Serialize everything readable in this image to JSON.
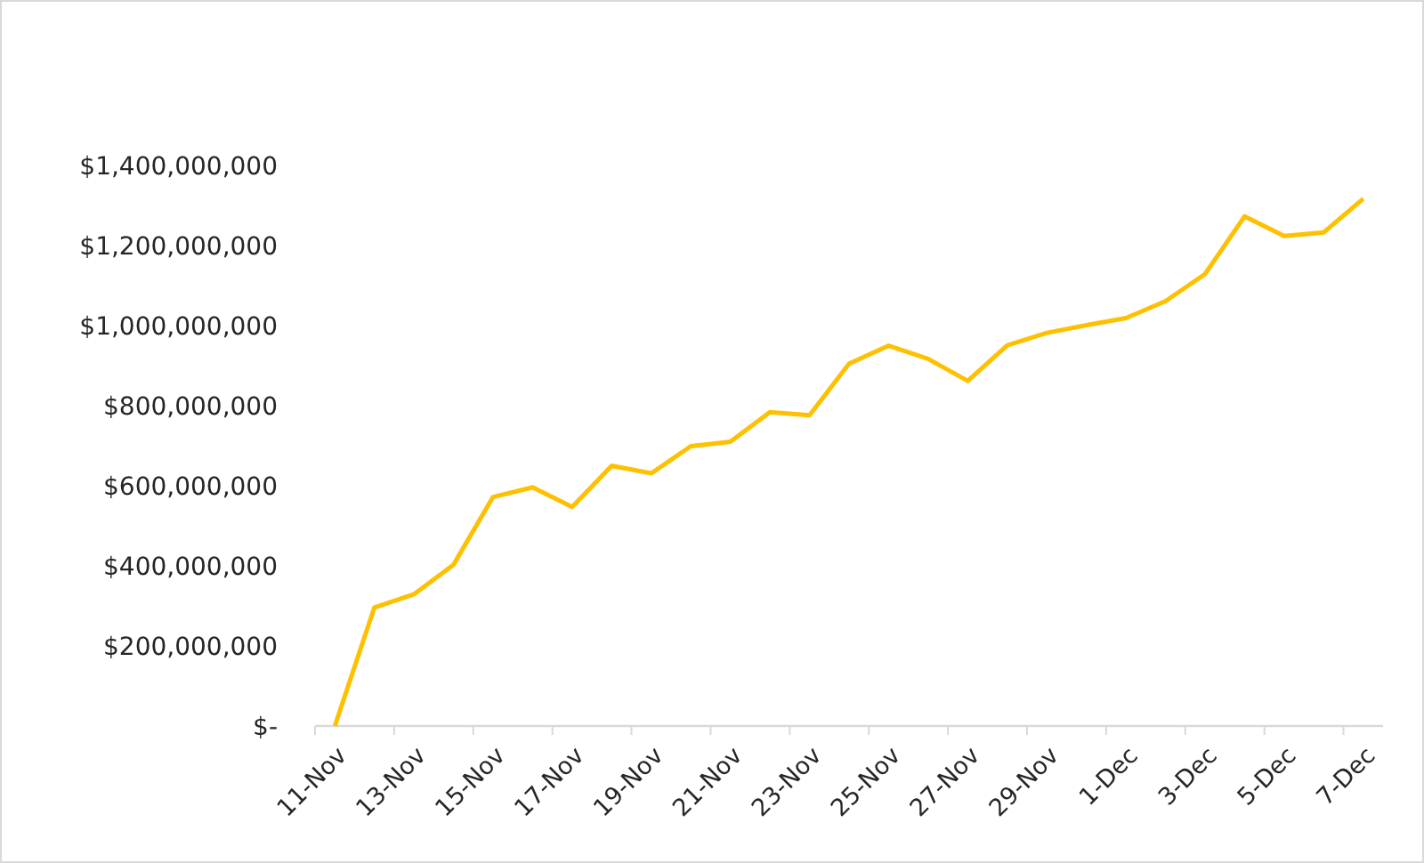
{
  "chart_data": {
    "type": "line",
    "categories": [
      "11-Nov",
      null,
      "13-Nov",
      null,
      "15-Nov",
      null,
      "17-Nov",
      null,
      "19-Nov",
      null,
      "21-Nov",
      null,
      "23-Nov",
      null,
      "25-Nov",
      null,
      "27-Nov",
      null,
      "29-Nov",
      null,
      "1-Dec",
      null,
      "3-Dec",
      null,
      "5-Dec",
      null,
      "7-Dec"
    ],
    "series": [
      {
        "color": "#ffc000",
        "values": [
          0,
          296000000,
          329000000,
          403000000,
          572000000,
          596000000,
          547000000,
          650000000,
          631000000,
          699000000,
          710000000,
          784000000,
          776000000,
          905000000,
          950000000,
          917000000,
          862000000,
          951000000,
          982000000,
          1001000000,
          1019000000,
          1061000000,
          1129000000,
          1273000000,
          1224000000,
          1233000000,
          1317000000
        ]
      }
    ],
    "ylim": [
      0,
      1400000000
    ],
    "yticks": [
      {
        "value": 0,
        "label": "$-"
      },
      {
        "value": 200000000,
        "label": "$200,000,000"
      },
      {
        "value": 400000000,
        "label": "$400,000,000"
      },
      {
        "value": 600000000,
        "label": "$600,000,000"
      },
      {
        "value": 800000000,
        "label": "$800,000,000"
      },
      {
        "value": 1000000000,
        "label": "$1,000,000,000"
      },
      {
        "value": 1200000000,
        "label": "$1,200,000,000"
      },
      {
        "value": 1400000000,
        "label": "$1,400,000,000"
      }
    ],
    "grid": false,
    "marker": "none",
    "line_style": "solid"
  }
}
